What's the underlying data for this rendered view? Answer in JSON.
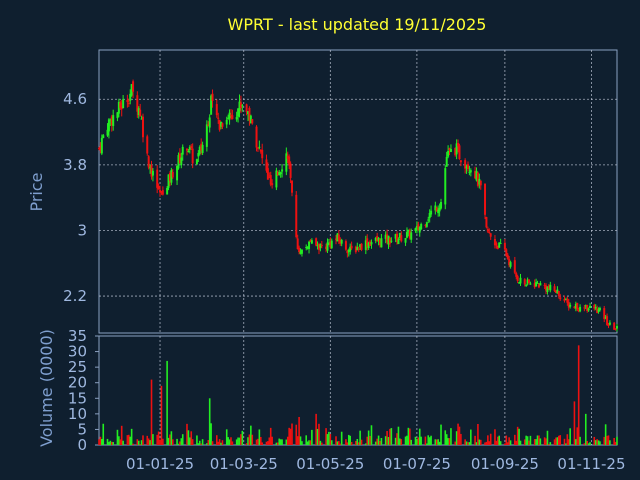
{
  "chart_data": {
    "type": "candlestick",
    "title": "WPRT - last updated 19/11/2025",
    "ylabel_price": "Price",
    "ylabel_volume": "Volume (0000)",
    "price_ticks": [
      "4.6",
      "3.8",
      "3",
      "2.2"
    ],
    "price_tick_values": [
      4.6,
      3.8,
      3.0,
      2.2
    ],
    "price_ylim": [
      1.75,
      5.2
    ],
    "volume_ticks": [
      "35",
      "30",
      "25",
      "20",
      "15",
      "10",
      "5",
      "0"
    ],
    "volume_tick_values": [
      35,
      30,
      25,
      20,
      15,
      10,
      5,
      0
    ],
    "volume_ylim": [
      0,
      35
    ],
    "x_ticks": [
      "01-01-25",
      "01-03-25",
      "01-05-25",
      "01-07-25",
      "01-09-25",
      "01-11-25"
    ],
    "x_tick_dates": [
      "2025-01-01",
      "2025-03-01",
      "2025-05-01",
      "2025-07-01",
      "2025-09-01",
      "2025-11-01"
    ],
    "x_range": [
      "2024-11-19",
      "2025-11-19"
    ],
    "grid": true,
    "up_color": "#22ee22",
    "down_color": "#ee1111",
    "price_anchors": [
      [
        "2024-11-19",
        4.0
      ],
      [
        "2024-11-25",
        4.3
      ],
      [
        "2024-12-02",
        4.45
      ],
      [
        "2024-12-08",
        4.6
      ],
      [
        "2024-12-12",
        4.7
      ],
      [
        "2024-12-18",
        4.45
      ],
      [
        "2024-12-23",
        3.9
      ],
      [
        "2024-12-28",
        3.6
      ],
      [
        "2025-01-02",
        3.4
      ],
      [
        "2025-01-08",
        3.65
      ],
      [
        "2025-01-14",
        3.85
      ],
      [
        "2025-01-20",
        4.05
      ],
      [
        "2025-01-26",
        3.8
      ],
      [
        "2025-02-01",
        4.1
      ],
      [
        "2025-02-06",
        4.55
      ],
      [
        "2025-02-12",
        4.3
      ],
      [
        "2025-02-18",
        4.4
      ],
      [
        "2025-02-22",
        4.45
      ],
      [
        "2025-02-28",
        4.55
      ],
      [
        "2025-03-04",
        4.45
      ],
      [
        "2025-03-10",
        4.1
      ],
      [
        "2025-03-16",
        3.75
      ],
      [
        "2025-03-21",
        3.5
      ],
      [
        "2025-03-26",
        3.75
      ],
      [
        "2025-04-01",
        3.95
      ],
      [
        "2025-04-05",
        3.2
      ],
      [
        "2025-04-09",
        2.7
      ],
      [
        "2025-04-16",
        2.85
      ],
      [
        "2025-04-26",
        2.8
      ],
      [
        "2025-05-06",
        2.9
      ],
      [
        "2025-05-15",
        2.75
      ],
      [
        "2025-05-26",
        2.85
      ],
      [
        "2025-06-06",
        2.88
      ],
      [
        "2025-06-16",
        2.9
      ],
      [
        "2025-06-26",
        2.95
      ],
      [
        "2025-07-01",
        3.0
      ],
      [
        "2025-07-10",
        3.2
      ],
      [
        "2025-07-18",
        3.35
      ],
      [
        "2025-07-22",
        3.9
      ],
      [
        "2025-07-28",
        4.0
      ],
      [
        "2025-08-03",
        3.85
      ],
      [
        "2025-08-10",
        3.75
      ],
      [
        "2025-08-15",
        3.5
      ],
      [
        "2025-08-19",
        3.0
      ],
      [
        "2025-08-25",
        2.85
      ],
      [
        "2025-09-01",
        2.75
      ],
      [
        "2025-09-08",
        2.45
      ],
      [
        "2025-09-15",
        2.35
      ],
      [
        "2025-09-24",
        2.35
      ],
      [
        "2025-10-01",
        2.3
      ],
      [
        "2025-10-08",
        2.25
      ],
      [
        "2025-10-15",
        2.1
      ],
      [
        "2025-10-25",
        2.05
      ],
      [
        "2025-11-03",
        2.05
      ],
      [
        "2025-11-08",
        2.0
      ],
      [
        "2025-11-13",
        1.85
      ],
      [
        "2025-11-19",
        1.8
      ]
    ],
    "volume_spikes": [
      [
        "2024-12-26",
        21
      ],
      [
        "2025-01-02",
        19
      ],
      [
        "2025-01-06",
        27
      ],
      [
        "2025-02-05",
        15
      ],
      [
        "2025-04-09",
        9
      ],
      [
        "2025-04-21",
        10
      ],
      [
        "2025-08-16",
        14
      ],
      [
        "2025-09-27",
        12
      ],
      [
        "2025-10-23",
        32
      ],
      [
        "2025-10-20",
        14
      ],
      [
        "2025-10-28",
        10
      ]
    ]
  }
}
